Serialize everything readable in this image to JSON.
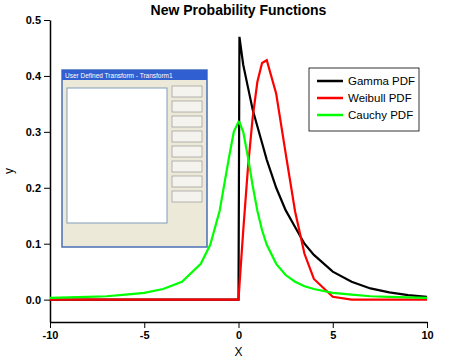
{
  "chart_data": {
    "type": "line",
    "title": "New Probability Functions",
    "x_label": "X",
    "y_label": "y",
    "annotations": [
      "User Defined Transform - Transform1"
    ],
    "x": [
      -10,
      -9,
      -8,
      -7,
      -6,
      -5,
      -4,
      -3,
      -2,
      -1.5,
      -1,
      -0.5,
      -0.25,
      0,
      0.05,
      0.25,
      0.5,
      0.75,
      1,
      1.25,
      1.5,
      2,
      2.5,
      3,
      3.5,
      4,
      5,
      6,
      7,
      8,
      9,
      10
    ],
    "series": [
      {
        "name": "Gamma PDF",
        "color": "#000000",
        "values": [
          0,
          0,
          0,
          0,
          0,
          0,
          0,
          0,
          0,
          0,
          0,
          0,
          0,
          0,
          0.47,
          0.42,
          0.38,
          0.34,
          0.31,
          0.28,
          0.25,
          0.2,
          0.16,
          0.13,
          0.1,
          0.08,
          0.05,
          0.032,
          0.02,
          0.013,
          0.008,
          0.005
        ]
      },
      {
        "name": "Weibull PDF",
        "color": "#ff0000",
        "values": [
          0,
          0,
          0,
          0,
          0,
          0,
          0,
          0,
          0,
          0,
          0,
          0,
          0,
          0,
          0.025,
          0.123,
          0.235,
          0.325,
          0.389,
          0.423,
          0.428,
          0.368,
          0.262,
          0.158,
          0.082,
          0.037,
          0.005,
          0,
          0,
          0,
          0,
          0
        ]
      },
      {
        "name": "Cauchy PDF",
        "color": "#00ff00",
        "values": [
          0.003,
          0.004,
          0.005,
          0.006,
          0.009,
          0.012,
          0.019,
          0.032,
          0.064,
          0.098,
          0.159,
          0.255,
          0.3,
          0.318,
          0.317,
          0.3,
          0.255,
          0.204,
          0.159,
          0.124,
          0.098,
          0.064,
          0.044,
          0.032,
          0.024,
          0.019,
          0.012,
          0.009,
          0.006,
          0.005,
          0.004,
          0.003
        ]
      }
    ],
    "xlim": [
      -10,
      10
    ],
    "xticks": [
      -10,
      -5,
      0,
      5,
      10
    ],
    "ylim": [
      -0.04,
      0.5
    ],
    "yticks": [
      {
        "value": 0,
        "label": "0.0"
      },
      0.1,
      0.2,
      0.3,
      0.4,
      0.5
    ],
    "grid": false,
    "legend": "top-right"
  }
}
